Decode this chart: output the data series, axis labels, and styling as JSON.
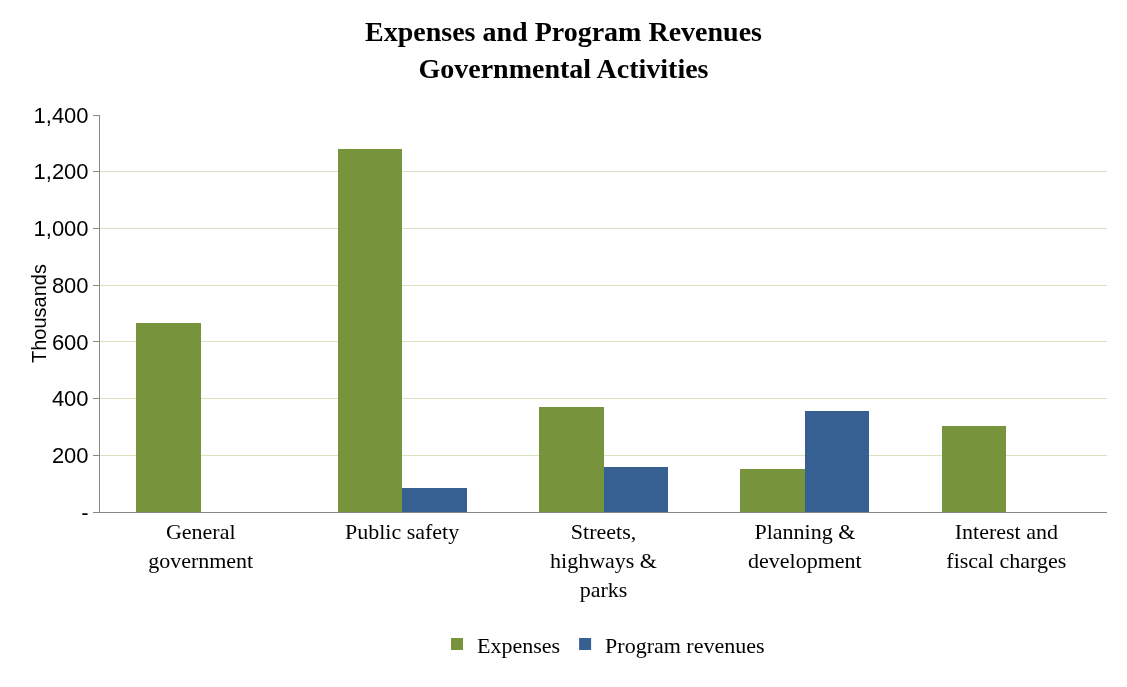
{
  "chart_data": {
    "type": "bar",
    "title": "Expenses and Program Revenues\nGovernmental Activities",
    "ylabel": "Thousands",
    "categories": [
      "General\ngovernment",
      "Public safety",
      "Streets,\nhighways &\nparks",
      "Planning &\ndevelopment",
      "Interest and\nfiscal charges"
    ],
    "series": [
      {
        "name": "Expenses",
        "color": "#77933c",
        "values": [
          665,
          1280,
          370,
          150,
          305
        ]
      },
      {
        "name": "Program revenues",
        "color": "#376092",
        "values": [
          0,
          85,
          160,
          355,
          0
        ]
      }
    ],
    "ylim": [
      0,
      1400
    ],
    "yticks": [
      {
        "value": 0,
        "label": "-"
      },
      200,
      400,
      600,
      800,
      {
        "value": 1000,
        "label": "1,000"
      },
      {
        "value": 1200,
        "label": "1,200"
      },
      {
        "value": 1400,
        "label": "1,400"
      }
    ],
    "grid": "y",
    "legend": "bottom"
  }
}
